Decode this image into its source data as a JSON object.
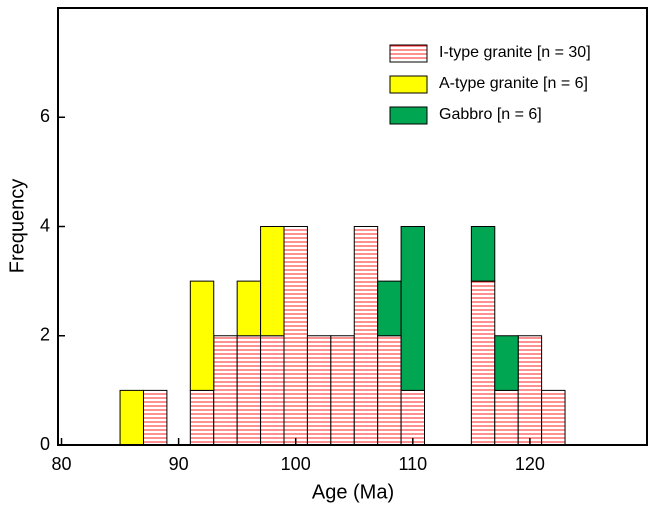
{
  "chart_data": {
    "type": "histogram",
    "xlabel": "Age (Ma)",
    "ylabel": "Frequency",
    "bins": [
      85,
      87,
      89,
      91,
      93,
      95,
      97,
      99,
      101,
      103,
      105,
      107,
      109,
      111,
      113,
      115,
      117,
      119,
      121,
      123
    ],
    "stacked": true,
    "series": [
      {
        "name": "I-type granite [n = 30]",
        "color": "#ff2020",
        "pattern": "hatch",
        "values": [
          0,
          1,
          0,
          1,
          2,
          2,
          2,
          4,
          2,
          2,
          4,
          2,
          1,
          0,
          0,
          3,
          1,
          2,
          1
        ]
      },
      {
        "name": "A-type granite [n = 6]",
        "color": "#ffff00",
        "values": [
          1,
          0,
          0,
          2,
          0,
          1,
          2,
          0,
          0,
          0,
          0,
          0,
          0,
          0,
          0,
          0,
          0,
          0,
          0
        ]
      },
      {
        "name": "Gabbro [n = 6]",
        "color": "#00a651",
        "values": [
          0,
          0,
          0,
          0,
          0,
          0,
          0,
          0,
          0,
          0,
          0,
          1,
          3,
          0,
          0,
          1,
          1,
          0,
          0
        ]
      }
    ],
    "xlim": [
      79.7,
      130
    ],
    "ylim": [
      0,
      8
    ],
    "xticks": [
      80,
      90,
      100,
      110,
      120
    ],
    "yticks": [
      0,
      2,
      4,
      6
    ],
    "legend": "upper right"
  }
}
